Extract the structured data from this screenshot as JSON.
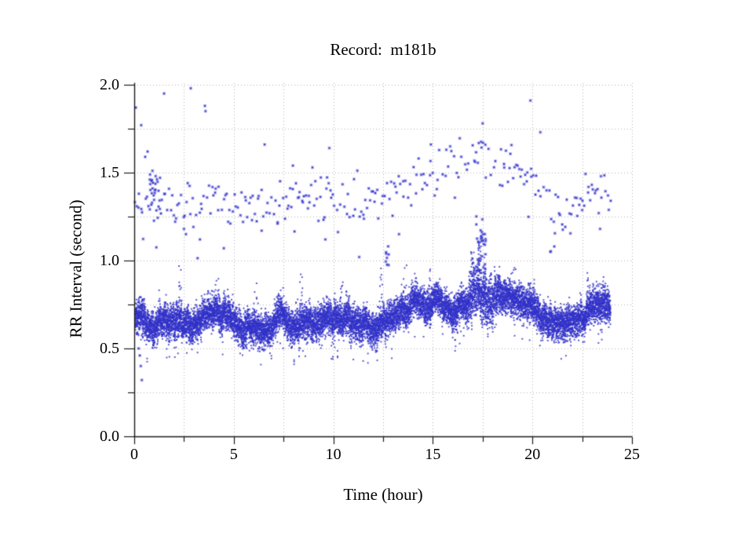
{
  "background": "#ffffff",
  "chart_data": {
    "type": "scatter",
    "title": "Record:  m181b",
    "xlabel": "Time (hour)",
    "ylabel": "RR Interval (second)",
    "xlim": [
      0,
      25
    ],
    "ylim": [
      0.0,
      2.0
    ],
    "x_major_ticks": [
      0,
      5,
      10,
      15,
      20,
      25
    ],
    "x_tick_labels": [
      "0",
      "5",
      "10",
      "15",
      "20",
      "25"
    ],
    "x_minor_step": 2.5,
    "y_major_ticks": [
      0.0,
      0.5,
      1.0,
      1.5,
      2.0
    ],
    "y_tick_labels": [
      "0.0",
      "0.5",
      "1.0",
      "1.5",
      "2.0"
    ],
    "y_minor_step": 0.25,
    "grid": {
      "style": "dotted",
      "color": "#b0b0b0",
      "x_step": 2.5,
      "y_step": 0.25
    },
    "legend": null,
    "axis_color": "#1a1a1a",
    "point_color": "#3232c8",
    "point_halo_color": "#6666dd",
    "seed": 1337,
    "time_range": [
      0.05,
      23.92
    ],
    "dense_band": {
      "t": [
        0,
        0.5,
        1,
        1.5,
        2,
        2.5,
        3,
        3.5,
        4,
        4.5,
        5,
        5.5,
        6,
        6.5,
        7,
        7.5,
        8,
        8.5,
        9,
        9.5,
        10,
        10.5,
        11,
        11.5,
        12,
        12.5,
        13,
        13.5,
        14,
        14.5,
        15,
        15.5,
        16,
        16.5,
        17,
        17.3,
        17.6,
        18,
        18.5,
        19,
        19.5,
        20,
        20.5,
        21,
        21.5,
        22,
        22.5,
        23,
        23.5,
        23.9
      ],
      "center": [
        0.7,
        0.67,
        0.64,
        0.67,
        0.65,
        0.68,
        0.64,
        0.65,
        0.67,
        0.66,
        0.64,
        0.63,
        0.66,
        0.64,
        0.65,
        0.68,
        0.66,
        0.68,
        0.65,
        0.63,
        0.66,
        0.65,
        0.68,
        0.66,
        0.64,
        0.68,
        0.7,
        0.72,
        0.74,
        0.76,
        0.77,
        0.76,
        0.73,
        0.76,
        0.8,
        0.84,
        0.8,
        0.76,
        0.77,
        0.74,
        0.73,
        0.7,
        0.64,
        0.61,
        0.6,
        0.62,
        0.66,
        0.7,
        0.72,
        0.7
      ],
      "spread": 0.045,
      "spread_peak": 0.07,
      "peak_window": [
        16.8,
        18.2
      ],
      "slice_step": 0.012,
      "points_per_slice": 7,
      "wander_step": 0.03,
      "wander_max": 0.05,
      "tail_down_prob": 0.06,
      "tail_down_max": 0.16,
      "tail_up_prob": 0.035,
      "tail_up_max": 0.1
    },
    "spikes": [
      {
        "t": 2.3,
        "top": 0.97,
        "n": 12
      },
      {
        "t": 4.2,
        "top": 0.9,
        "n": 8
      },
      {
        "t": 6.1,
        "top": 0.88,
        "n": 6
      },
      {
        "t": 8.4,
        "top": 0.93,
        "n": 10
      },
      {
        "t": 10.4,
        "top": 0.93,
        "n": 8
      },
      {
        "t": 12.4,
        "top": 0.96,
        "n": 10
      },
      {
        "t": 13.6,
        "top": 0.98,
        "n": 12
      },
      {
        "t": 14.9,
        "top": 0.95,
        "n": 8
      },
      {
        "t": 17.0,
        "top": 1.05,
        "n": 25
      },
      {
        "t": 17.35,
        "top": 1.12,
        "n": 40
      },
      {
        "t": 17.6,
        "top": 1.02,
        "n": 18
      },
      {
        "t": 18.3,
        "top": 0.98,
        "n": 10
      },
      {
        "t": 19.1,
        "top": 0.96,
        "n": 8
      },
      {
        "t": 22.8,
        "top": 0.97,
        "n": 12
      },
      {
        "t": 23.6,
        "top": 0.92,
        "n": 8
      }
    ],
    "sparse_band": {
      "t": [
        0,
        1,
        2,
        3,
        4,
        5,
        6,
        7,
        8,
        9,
        10,
        11,
        12,
        13,
        14,
        15,
        15.5,
        16,
        16.5,
        17,
        17.5,
        18,
        18.5,
        19,
        19.5,
        20,
        20.5,
        21,
        21.5,
        22,
        22.5,
        23,
        23.5,
        24
      ],
      "center": [
        1.33,
        1.37,
        1.33,
        1.32,
        1.34,
        1.33,
        1.31,
        1.32,
        1.35,
        1.37,
        1.36,
        1.33,
        1.35,
        1.4,
        1.45,
        1.5,
        1.53,
        1.56,
        1.54,
        1.58,
        1.62,
        1.55,
        1.52,
        1.55,
        1.48,
        1.45,
        1.35,
        1.27,
        1.22,
        1.26,
        1.32,
        1.44,
        1.38,
        1.28
      ],
      "spread": 0.06,
      "density_per_hour": 14,
      "keep_prob": 0.85,
      "low_tail_prob": 0.1,
      "low_tail_max": 0.16,
      "high_tail_prob": 0.05,
      "high_tail_max": 0.1
    },
    "sparse_clusters": [
      {
        "t": 1.05,
        "dt": 0.3,
        "v": 1.37,
        "dv": 0.11,
        "n": 26
      },
      {
        "t": 17.4,
        "dt": 0.25,
        "v": 1.08,
        "dv": 0.09,
        "n": 30
      },
      {
        "t": 12.75,
        "dt": 0.15,
        "v": 1.02,
        "dv": 0.04,
        "n": 8
      }
    ],
    "outliers": [
      [
        0.08,
        1.87
      ],
      [
        0.35,
        1.77
      ],
      [
        0.67,
        1.62
      ],
      [
        0.55,
        1.59
      ],
      [
        1.5,
        1.95
      ],
      [
        2.84,
        1.98
      ],
      [
        3.55,
        1.88
      ],
      [
        3.58,
        1.85
      ],
      [
        6.55,
        1.66
      ],
      [
        7.97,
        1.54
      ],
      [
        9.8,
        1.64
      ],
      [
        14.9,
        1.66
      ],
      [
        17.5,
        1.78
      ],
      [
        19.9,
        1.91
      ],
      [
        20.4,
        1.73
      ],
      [
        2.5,
        1.18
      ],
      [
        2.6,
        1.15
      ],
      [
        3.3,
        1.12
      ],
      [
        4.5,
        1.07
      ],
      [
        6.4,
        1.17
      ],
      [
        7.2,
        1.21
      ],
      [
        9.6,
        1.12
      ],
      [
        11.3,
        1.02
      ],
      [
        13.3,
        1.15
      ],
      [
        20.9,
        1.05
      ],
      [
        21.1,
        1.08
      ],
      [
        23.4,
        1.18
      ],
      [
        0.22,
        0.5
      ],
      [
        0.28,
        0.46
      ],
      [
        0.33,
        0.4
      ],
      [
        0.38,
        0.32
      ]
    ]
  }
}
